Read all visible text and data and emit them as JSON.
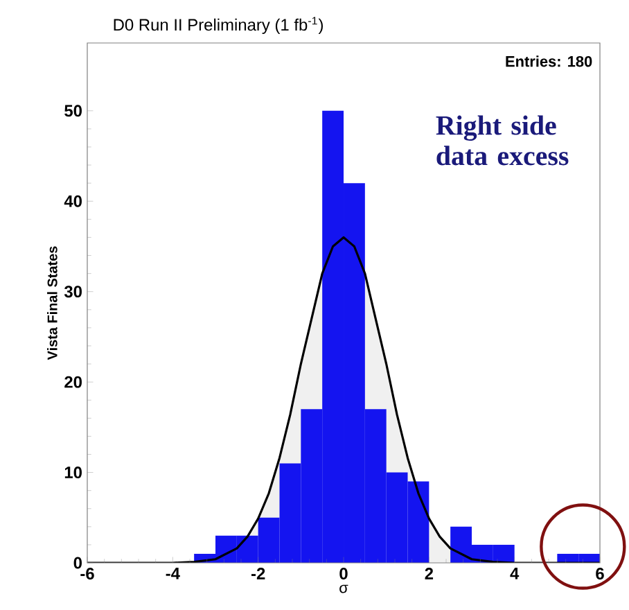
{
  "chart_data": {
    "type": "histogram",
    "title": "D0 Run II Preliminary (1 fb$^{-1}$)",
    "xlabel": "σ",
    "ylabel": "Vista Final States",
    "annotations": [
      "Entries: 180",
      "Right side data excess"
    ],
    "xlim": [
      -6,
      6
    ],
    "ylim": [
      0,
      57.5
    ],
    "xticks": [
      -6,
      -4,
      -2,
      0,
      2,
      4,
      6
    ],
    "yticks": [
      0,
      10,
      20,
      30,
      40,
      50
    ],
    "series": [
      {
        "color": "#1414f0",
        "bins": [
          -6,
          -5.5,
          -5,
          -4.5,
          -4,
          -3.5,
          -3,
          -2.5,
          -2,
          -1.5,
          -1,
          -0.5,
          0,
          0.5,
          1,
          1.5,
          2,
          2.5,
          3,
          3.5,
          4,
          4.5,
          5,
          5.5,
          6
        ],
        "values": [
          0,
          0,
          0,
          0,
          0,
          1,
          3,
          3,
          5,
          11,
          17,
          50,
          42,
          17,
          10,
          9,
          0,
          4,
          2,
          2,
          0,
          0,
          1,
          1
        ]
      },
      {
        "type": "area",
        "color": "#000000",
        "x": [
          -6,
          -4,
          -3.5,
          -3,
          -2.5,
          -2.25,
          -2,
          -1.75,
          -1.5,
          -1.25,
          -1,
          -0.75,
          -0.5,
          -0.25,
          0,
          0.25,
          0.5,
          0.75,
          1,
          1.25,
          1.5,
          1.75,
          2,
          2.25,
          2.5,
          3,
          3.5,
          4,
          6
        ],
        "values": [
          0,
          0,
          0.1,
          0.4,
          1.6,
          2.9,
          4.9,
          7.7,
          11.6,
          16.4,
          22,
          27,
          32,
          35,
          36,
          35,
          32,
          27,
          22,
          16.4,
          11.6,
          7.7,
          4.9,
          2.9,
          1.6,
          0.4,
          0.1,
          0,
          0
        ]
      }
    ]
  }
}
